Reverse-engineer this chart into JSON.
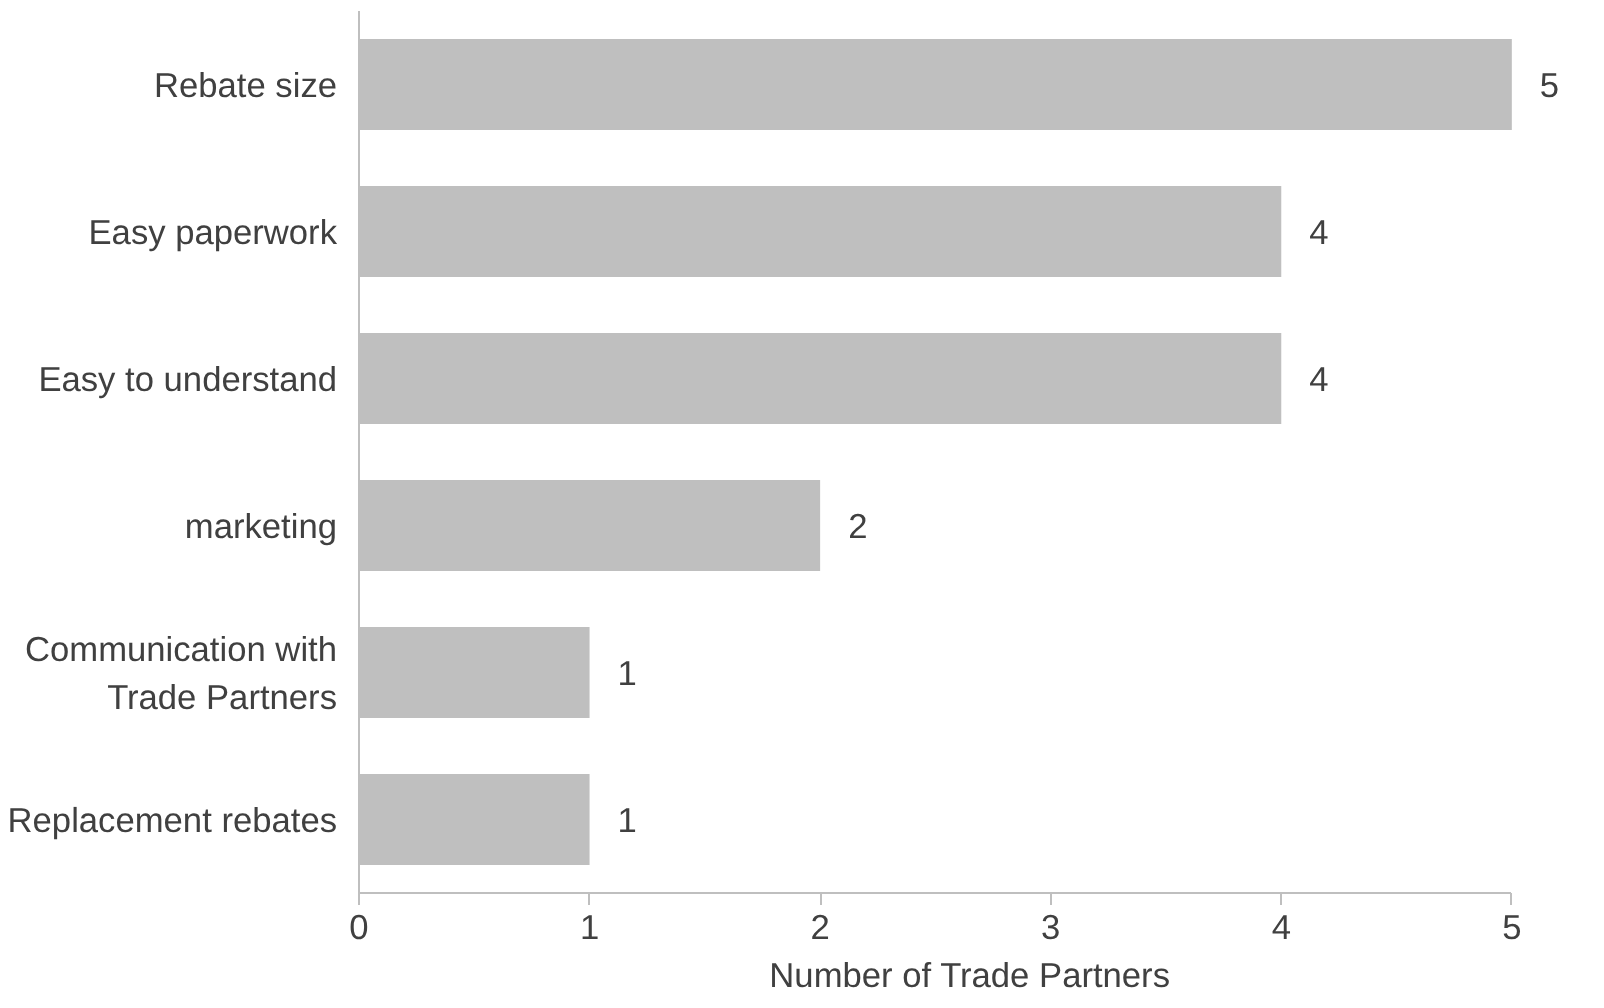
{
  "chart_data": {
    "type": "bar",
    "orientation": "horizontal",
    "xlabel": "Number of Trade Partners",
    "categories": [
      "Rebate size",
      "Easy paperwork",
      "Easy to understand",
      "marketing",
      "Communication with Trade Partners",
      "Replacement rebates"
    ],
    "values": [
      5,
      4,
      4,
      2,
      1,
      1
    ],
    "color": "#bfbfbf",
    "xlim": [
      0,
      5
    ],
    "xticks": [
      0,
      1,
      2,
      3,
      4,
      5
    ],
    "data_labels": true,
    "grid": false
  }
}
